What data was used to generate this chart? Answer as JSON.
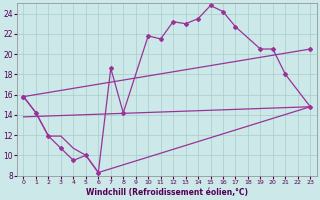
{
  "xlabel": "Windchill (Refroidissement éolien,°C)",
  "xlim": [
    -0.5,
    23.5
  ],
  "ylim": [
    8,
    25
  ],
  "yticks": [
    8,
    10,
    12,
    14,
    16,
    18,
    20,
    22,
    24
  ],
  "xticks": [
    0,
    1,
    2,
    3,
    4,
    5,
    6,
    7,
    8,
    9,
    10,
    11,
    12,
    13,
    14,
    15,
    16,
    17,
    18,
    19,
    20,
    21,
    22,
    23
  ],
  "background_color": "#cce8e8",
  "grid_color": "#aacccc",
  "line_color": "#993399",
  "series": [
    {
      "x": [
        0,
        1,
        2,
        3,
        4,
        5,
        6,
        7,
        8,
        10,
        11,
        12,
        13,
        14,
        15,
        16,
        17,
        19,
        20,
        21,
        23
      ],
      "y": [
        15.8,
        14.2,
        11.9,
        10.7,
        9.5,
        10.0,
        8.3,
        18.6,
        14.2,
        21.8,
        21.5,
        23.2,
        23.0,
        23.5,
        24.8,
        24.2,
        22.7,
        20.5,
        20.5,
        18.0,
        14.8
      ]
    },
    {
      "x": [
        0,
        23
      ],
      "y": [
        15.8,
        20.5
      ]
    },
    {
      "x": [
        0,
        23
      ],
      "y": [
        13.8,
        14.8
      ]
    },
    {
      "x": [
        0,
        1,
        2,
        3,
        4,
        5,
        6,
        23
      ],
      "y": [
        15.8,
        14.2,
        11.9,
        11.9,
        10.7,
        10.0,
        8.3,
        14.8
      ]
    }
  ]
}
